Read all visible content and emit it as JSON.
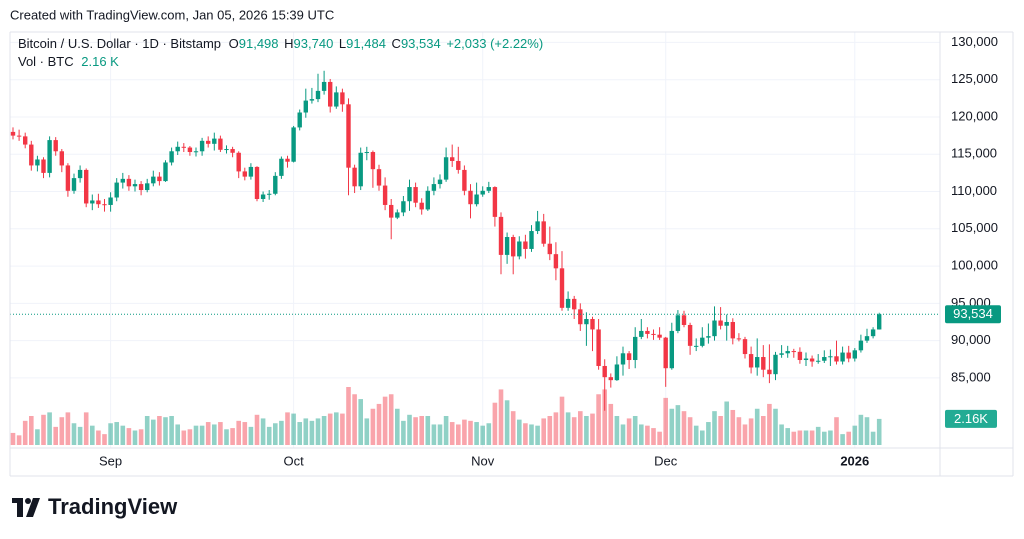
{
  "header": {
    "watermark": "Created with TradingView.com, Jan 05, 2026 15:39 UTC",
    "symbol": "Bitcoin / U.S. Dollar · 1D · Bitstamp",
    "o_label": "O",
    "o": "91,498",
    "h_label": "H",
    "h": "93,740",
    "l_label": "L",
    "l": "91,484",
    "c_label": "C",
    "c": "93,534",
    "change": "+2,033 (+2.22%)",
    "vol_label": "Vol · BTC",
    "vol": "2.16 K"
  },
  "logo": "TradingView",
  "chart_data": {
    "type": "candlestick",
    "categories": [
      null,
      null,
      null,
      null,
      null,
      null,
      null,
      null,
      null,
      null,
      null,
      null,
      null,
      null,
      null,
      null,
      "Sep",
      null,
      null,
      null,
      null,
      null,
      null,
      null,
      null,
      null,
      null,
      null,
      null,
      null,
      null,
      null,
      null,
      null,
      null,
      null,
      null,
      null,
      null,
      null,
      null,
      null,
      null,
      null,
      null,
      null,
      "Oct",
      null,
      null,
      null,
      null,
      null,
      null,
      null,
      null,
      null,
      null,
      null,
      null,
      null,
      null,
      null,
      null,
      null,
      null,
      null,
      null,
      null,
      null,
      null,
      null,
      null,
      null,
      null,
      null,
      null,
      null,
      "Nov",
      null,
      null,
      null,
      null,
      null,
      null,
      null,
      null,
      null,
      null,
      null,
      null,
      null,
      null,
      null,
      null,
      null,
      null,
      null,
      null,
      null,
      null,
      null,
      null,
      null,
      null,
      null,
      null,
      null,
      "Dec",
      null,
      null,
      null,
      null,
      null,
      null,
      null,
      null,
      null,
      null,
      null,
      null,
      null,
      null,
      null,
      null,
      null,
      null,
      null,
      null,
      null,
      null,
      null,
      null,
      null,
      null,
      null,
      null,
      null,
      null,
      "2026",
      null,
      null,
      null,
      null
    ],
    "open": [
      118000,
      117500,
      117400,
      116300,
      113500,
      114300,
      112500,
      116900,
      115400,
      113500,
      110100,
      111800,
      112900,
      108400,
      108800,
      108300,
      108200,
      109200,
      111200,
      111700,
      110700,
      111000,
      110200,
      111100,
      112000,
      111400,
      113900,
      115400,
      116000,
      115900,
      115300,
      115400,
      116800,
      116400,
      117100,
      115600,
      115700,
      115200,
      112700,
      112000,
      113300,
      109000,
      109600,
      109700,
      112100,
      114400,
      114000,
      118600,
      120600,
      122200,
      122400,
      123500,
      124700,
      121400,
      123300,
      121700,
      113200,
      110700,
      115200,
      115300,
      113000,
      110800,
      108200,
      106500,
      107200,
      108700,
      110600,
      108500,
      107600,
      110100,
      111000,
      111600,
      114600,
      114100,
      112900,
      110100,
      108300,
      109600,
      110100,
      110600,
      106600,
      101500,
      103900,
      101300,
      103300,
      102300,
      104700,
      106000,
      103000,
      101600,
      99700,
      94400,
      95600,
      94200,
      92200,
      92900,
      91500,
      86600,
      85100,
      84700,
      86800,
      88300,
      87400,
      90500,
      91300,
      90900,
      90800,
      90400,
      86300,
      91300,
      93400,
      92100,
      89300,
      89300,
      90400,
      90600,
      92700,
      92000,
      92500,
      90300,
      90200,
      88200,
      86400,
      87800,
      86100,
      85500,
      88100,
      88300,
      88600,
      88500,
      87400,
      87600,
      87200,
      87300,
      87800,
      87900,
      87200,
      88400,
      87600,
      88700,
      90000,
      90600,
      91498
    ],
    "high": [
      118600,
      118300,
      117900,
      116800,
      114800,
      114600,
      117400,
      117300,
      115700,
      113800,
      112400,
      113500,
      113100,
      109600,
      109700,
      109000,
      109900,
      111800,
      112500,
      112200,
      111600,
      111400,
      111700,
      112800,
      112600,
      114200,
      115900,
      116700,
      116500,
      116100,
      115900,
      117200,
      117400,
      117900,
      117500,
      116200,
      116000,
      115400,
      113200,
      113800,
      113400,
      110000,
      110200,
      112600,
      114700,
      114800,
      118800,
      121000,
      123800,
      123900,
      125800,
      126200,
      125100,
      124100,
      123800,
      122500,
      113600,
      115900,
      116000,
      115500,
      113600,
      111900,
      109000,
      107600,
      109400,
      111600,
      111200,
      109100,
      110700,
      111900,
      112300,
      115900,
      116300,
      116000,
      113500,
      111000,
      111200,
      110700,
      111300,
      110700,
      107200,
      104500,
      104200,
      104000,
      104200,
      105500,
      107400,
      107000,
      105300,
      103200,
      102000,
      96600,
      96000,
      95000,
      93800,
      93200,
      92900,
      87500,
      85600,
      87900,
      89200,
      88600,
      91800,
      92900,
      91800,
      91500,
      91800,
      90500,
      92400,
      94100,
      94000,
      92400,
      90300,
      91800,
      92300,
      94600,
      94500,
      93500,
      93000,
      91000,
      90500,
      89200,
      90300,
      89400,
      89500,
      88500,
      89400,
      89300,
      88900,
      89100,
      88400,
      88000,
      88200,
      88700,
      88800,
      90000,
      89200,
      89300,
      89000,
      90800,
      91600,
      91800,
      93740
    ],
    "low": [
      117000,
      116800,
      115800,
      112800,
      112700,
      111800,
      111900,
      114800,
      112600,
      109300,
      109700,
      111200,
      107900,
      107500,
      107800,
      107300,
      107300,
      108700,
      110400,
      110100,
      110000,
      109500,
      109900,
      110700,
      110800,
      111300,
      113500,
      114900,
      115300,
      114800,
      114700,
      114800,
      115900,
      115500,
      115300,
      115100,
      114600,
      111800,
      111500,
      111600,
      108700,
      108600,
      108900,
      109500,
      111700,
      113200,
      113900,
      118200,
      119900,
      121800,
      122000,
      123000,
      120600,
      121100,
      120700,
      109500,
      109800,
      110200,
      114200,
      110500,
      110100,
      107500,
      103600,
      106300,
      106700,
      107400,
      107900,
      106900,
      107400,
      109500,
      110400,
      111300,
      113300,
      112400,
      109500,
      106400,
      108000,
      109300,
      109800,
      105300,
      98900,
      100300,
      98900,
      100900,
      101000,
      101900,
      104300,
      102600,
      100800,
      98100,
      94000,
      94000,
      92900,
      91300,
      89300,
      88600,
      86100,
      80600,
      83700,
      84600,
      85300,
      86200,
      86300,
      90200,
      90300,
      90100,
      90100,
      83800,
      86100,
      91000,
      91800,
      88100,
      88600,
      89100,
      89600,
      90000,
      91500,
      90000,
      89500,
      89900,
      87600,
      85600,
      85300,
      85100,
      84300,
      84700,
      87700,
      87700,
      87700,
      86900,
      86600,
      86500,
      86900,
      87000,
      86600,
      86800,
      86800,
      87100,
      87200,
      88400,
      89700,
      90300,
      91484
    ],
    "close": [
      117500,
      117400,
      116300,
      113500,
      114300,
      112500,
      116900,
      115400,
      113500,
      110100,
      111800,
      112900,
      108400,
      108800,
      108300,
      108200,
      109200,
      111200,
      111700,
      110700,
      111000,
      110200,
      111100,
      112000,
      111400,
      113900,
      115400,
      116000,
      115900,
      115300,
      115400,
      116800,
      116400,
      117100,
      115600,
      115700,
      115200,
      112700,
      112000,
      113300,
      109000,
      109600,
      109700,
      112100,
      114400,
      114000,
      118600,
      120600,
      122200,
      122400,
      123500,
      124700,
      121400,
      123300,
      121700,
      113200,
      110700,
      115200,
      115300,
      113000,
      110800,
      108200,
      106500,
      107200,
      108700,
      110600,
      108500,
      107600,
      110100,
      111000,
      111600,
      114600,
      114100,
      112900,
      110100,
      108300,
      109600,
      110100,
      110600,
      106600,
      101500,
      103900,
      101300,
      103300,
      102300,
      104700,
      106000,
      103000,
      101600,
      99700,
      94400,
      95600,
      94200,
      92200,
      92900,
      91500,
      86600,
      85100,
      84700,
      86800,
      88300,
      87400,
      90500,
      91300,
      90900,
      90800,
      90400,
      86300,
      91300,
      93400,
      92100,
      89300,
      89300,
      90400,
      90600,
      92700,
      92000,
      92500,
      90300,
      90200,
      88200,
      86400,
      87800,
      86100,
      85500,
      88100,
      88300,
      88600,
      88500,
      87400,
      87600,
      87200,
      87300,
      87800,
      87900,
      87200,
      88400,
      87600,
      88700,
      90000,
      90600,
      91500,
      93534
    ],
    "volume": [
      1000,
      800,
      2000,
      2400,
      1300,
      2500,
      2700,
      1500,
      2300,
      2700,
      1800,
      1500,
      2700,
      1600,
      1200,
      900,
      1800,
      1900,
      1600,
      1400,
      1200,
      1300,
      2400,
      2100,
      2400,
      2300,
      2400,
      1700,
      1200,
      1300,
      1600,
      1600,
      1900,
      1700,
      1900,
      1300,
      1400,
      2000,
      1900,
      1500,
      2500,
      2200,
      1500,
      1800,
      2000,
      2700,
      2600,
      1900,
      2200,
      2000,
      2200,
      2400,
      2600,
      2700,
      2600,
      4800,
      4200,
      3800,
      2200,
      3000,
      3400,
      4000,
      4200,
      3000,
      2000,
      2500,
      2300,
      2400,
      2400,
      1700,
      1700,
      2400,
      1900,
      1700,
      2100,
      2000,
      1900,
      1600,
      1800,
      3500,
      4600,
      3700,
      2800,
      2100,
      1800,
      1700,
      1600,
      2200,
      2400,
      2700,
      4000,
      2700,
      2300,
      2800,
      2400,
      2600,
      4200,
      4600,
      3400,
      2400,
      1700,
      2200,
      2400,
      1700,
      1600,
      1400,
      1100,
      3900,
      3000,
      3300,
      2800,
      2300,
      1600,
      1200,
      1900,
      2800,
      2400,
      3600,
      2900,
      2300,
      1700,
      2200,
      3000,
      2400,
      3400,
      3000,
      1700,
      1400,
      1100,
      1200,
      1200,
      1200,
      1500,
      1100,
      1200,
      2300,
      900,
      1100,
      1600,
      2500,
      2300,
      1100,
      2160
    ],
    "ylim": [
      76000,
      131400
    ],
    "yticks": [
      {
        "value": 85000,
        "label": "85,000"
      },
      {
        "value": 90000,
        "label": "90,000"
      },
      {
        "value": 95000,
        "label": "95,000"
      },
      {
        "value": 100000,
        "label": "100,000"
      },
      {
        "value": 105000,
        "label": "105,000"
      },
      {
        "value": 110000,
        "label": "110,000"
      },
      {
        "value": 115000,
        "label": "115,000"
      },
      {
        "value": 120000,
        "label": "120,000"
      },
      {
        "value": 125000,
        "label": "125,000"
      },
      {
        "value": 130000,
        "label": "130,000"
      }
    ],
    "grid": true,
    "up_color": "#089981",
    "down_color": "#f23645",
    "last_price_label": "93,534",
    "last_volume_label": "2.16K"
  }
}
